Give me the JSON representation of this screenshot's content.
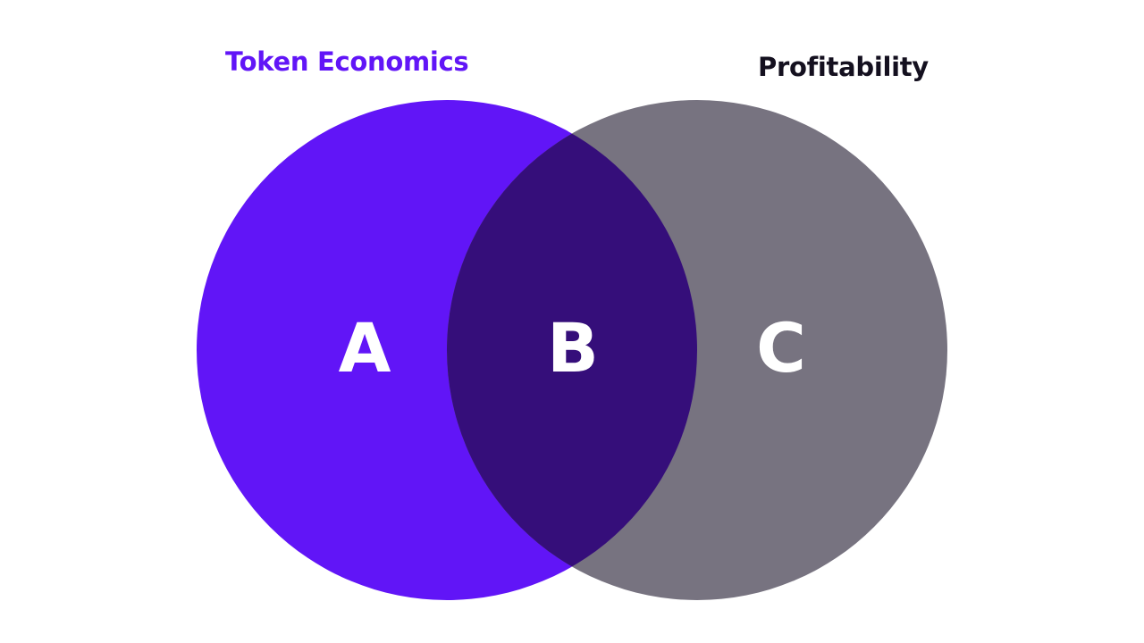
{
  "diagram": {
    "sets": [
      {
        "id": "left",
        "label": "Token Economics",
        "color": "#6115f7",
        "label_color": "#6115f7"
      },
      {
        "id": "right",
        "label": "Profitability",
        "color": "#777380",
        "label_color": "#14101f"
      }
    ],
    "overlap_color": "#350e7a",
    "regions": [
      {
        "id": "a",
        "letter": "A"
      },
      {
        "id": "b",
        "letter": "B"
      },
      {
        "id": "c",
        "letter": "C"
      }
    ]
  }
}
